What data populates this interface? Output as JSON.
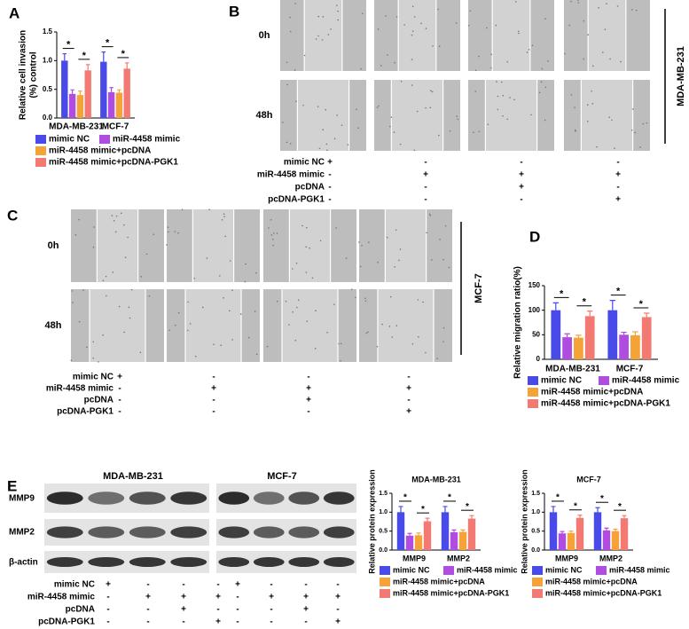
{
  "panel_labels": [
    "A",
    "B",
    "C",
    "D",
    "E"
  ],
  "chart_data": [
    {
      "type": "bar",
      "y_label": [
        "Relative cell invasion",
        "(%) control"
      ],
      "categories": [
        "MDA-MB-231",
        "MCF-7"
      ],
      "series": [
        {
          "name": "mimic NC",
          "color": "#4a4ae8",
          "values": [
            1.0,
            0.98
          ],
          "errors": [
            0.12,
            0.17
          ]
        },
        {
          "name": "miR-4458 mimic",
          "color": "#b04ce0",
          "values": [
            0.42,
            0.45
          ],
          "errors": [
            0.07,
            0.08
          ]
        },
        {
          "name": "miR-4458 mimic+pcDNA",
          "color": "#f5a238",
          "values": [
            0.4,
            0.44
          ],
          "errors": [
            0.07,
            0.05
          ]
        },
        {
          "name": "miR-4458 mimic+pcDNA-PGK1",
          "color": "#f27a72",
          "values": [
            0.83,
            0.86
          ],
          "errors": [
            0.1,
            0.1
          ]
        }
      ],
      "ylim": [
        0,
        1.5
      ],
      "yticks": [
        {
          "value": 0,
          "label": "0.0"
        },
        0.5,
        {
          "value": 1,
          "label": "1.0"
        },
        1.5
      ],
      "annotations": [
        "*",
        "*",
        "*",
        "*"
      ]
    },
    {
      "type": "bar",
      "y_label": [
        "Relative migration ratio(%)"
      ],
      "categories": [
        "MDA-MB-231",
        "MCF-7"
      ],
      "series": [
        {
          "name": "mimic NC",
          "color": "#4a4ae8",
          "values": [
            100,
            100
          ],
          "errors": [
            15,
            20
          ]
        },
        {
          "name": "miR-4458 mimic",
          "color": "#b04ce0",
          "values": [
            45,
            50
          ],
          "errors": [
            7,
            5
          ]
        },
        {
          "name": "miR-4458 mimic+pcDNA",
          "color": "#f5a238",
          "values": [
            44,
            49
          ],
          "errors": [
            5,
            7
          ]
        },
        {
          "name": "miR-4458 mimic+pcDNA-PGK1",
          "color": "#f27a72",
          "values": [
            88,
            86
          ],
          "errors": [
            10,
            8
          ]
        }
      ],
      "ylim": [
        0,
        150
      ],
      "yticks": [
        0,
        50,
        100,
        150
      ],
      "annotations": [
        "*",
        "*",
        "*",
        "*"
      ]
    },
    {
      "type": "bar",
      "title": "MDA-MB-231",
      "y_label": [
        "Relative protein expression"
      ],
      "categories": [
        "MMP9",
        "MMP2"
      ],
      "series": [
        {
          "name": "mimic NC",
          "color": "#4a4ae8",
          "values": [
            1.0,
            1.0
          ],
          "errors": [
            0.15,
            0.15
          ]
        },
        {
          "name": "miR-4458 mimic",
          "color": "#b04ce0",
          "values": [
            0.38,
            0.47
          ],
          "errors": [
            0.06,
            0.06
          ]
        },
        {
          "name": "miR-4458 mimic+pcDNA",
          "color": "#f5a238",
          "values": [
            0.39,
            0.48
          ],
          "errors": [
            0.06,
            0.05
          ]
        },
        {
          "name": "miR-4458 mimic+pcDNA-PGK1",
          "color": "#f27a72",
          "values": [
            0.76,
            0.83
          ],
          "errors": [
            0.08,
            0.08
          ]
        }
      ],
      "ylim": [
        0,
        1.5
      ],
      "yticks": [
        {
          "value": 0,
          "label": "0.0"
        },
        0.5,
        {
          "value": 1,
          "label": "1.0"
        },
        1.5
      ],
      "annotations": [
        "*",
        "*",
        "*",
        "*"
      ]
    },
    {
      "type": "bar",
      "title": "MCF-7",
      "y_label": [
        "Relative protein expression"
      ],
      "categories": [
        "MMP9",
        "MMP2"
      ],
      "series": [
        {
          "name": "mimic NC",
          "color": "#4a4ae8",
          "values": [
            1.0,
            1.0
          ],
          "errors": [
            0.15,
            0.12
          ]
        },
        {
          "name": "miR-4458 mimic",
          "color": "#b04ce0",
          "values": [
            0.44,
            0.52
          ],
          "errors": [
            0.05,
            0.06
          ]
        },
        {
          "name": "miR-4458 mimic+pcDNA",
          "color": "#f5a238",
          "values": [
            0.45,
            0.5
          ],
          "errors": [
            0.05,
            0.05
          ]
        },
        {
          "name": "miR-4458 mimic+pcDNA-PGK1",
          "color": "#f27a72",
          "values": [
            0.85,
            0.84
          ],
          "errors": [
            0.07,
            0.07
          ]
        }
      ],
      "ylim": [
        0,
        1.5
      ],
      "yticks": [
        {
          "value": 0,
          "label": "0.0"
        },
        0.5,
        {
          "value": 1,
          "label": "1.0"
        },
        1.5
      ],
      "annotations": [
        "*",
        "*",
        "*",
        "*"
      ]
    }
  ],
  "scratch_assays": [
    {
      "cell_line": "MDA-MB-231",
      "times": [
        "0h",
        "48h"
      ]
    },
    {
      "cell_line": "MCF-7",
      "times": [
        "0h",
        "48h"
      ]
    }
  ],
  "treatment_tables": [
    {
      "rows": [
        "mimic NC",
        "miR-4458 mimic",
        "pcDNA",
        "pcDNA-PGK1"
      ],
      "cells": [
        [
          "+",
          "-",
          "-",
          "-"
        ],
        [
          "-",
          "+",
          "+",
          "+"
        ],
        [
          "-",
          "-",
          "+",
          "-"
        ],
        [
          "-",
          "-",
          "-",
          "+"
        ]
      ]
    },
    {
      "rows": [
        "mimic NC",
        "miR-4458 mimic",
        "pcDNA",
        "pcDNA-PGK1"
      ],
      "cells": [
        [
          "+",
          "-",
          "-",
          "-"
        ],
        [
          "-",
          "+",
          "+",
          "+"
        ],
        [
          "-",
          "-",
          "+",
          "-"
        ],
        [
          "-",
          "-",
          "-",
          "+"
        ]
      ]
    },
    {
      "rows": [
        "mimic NC",
        "miR-4458 mimic",
        "pcDNA",
        "pcDNA-PGK1"
      ],
      "cells": [
        [
          "+",
          "-",
          "-",
          "-",
          "+",
          "-",
          "-",
          "-"
        ],
        [
          "-",
          "+",
          "+",
          "+",
          "-",
          "+",
          "+",
          "+"
        ],
        [
          "-",
          "-",
          "+",
          "-",
          "-",
          "-",
          "+",
          "-"
        ],
        [
          "-",
          "-",
          "-",
          "+",
          "-",
          "-",
          "-",
          "+"
        ]
      ]
    }
  ],
  "western_blot": {
    "cell_lines": [
      "MDA-MB-231",
      "MCF-7"
    ],
    "proteins": [
      "MMP9",
      "MMP2",
      "β-actin"
    ]
  }
}
